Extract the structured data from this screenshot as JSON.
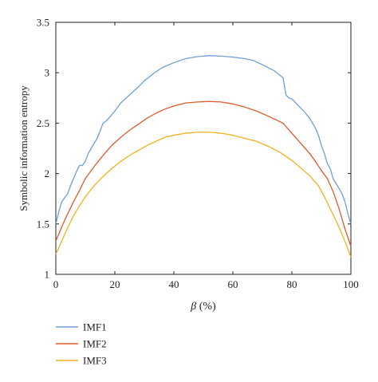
{
  "chart_data": {
    "type": "line",
    "title": "",
    "xlabel_symbol": "β",
    "xlabel_unit": " (%)",
    "ylabel": "Symbolic information entropy",
    "xlim": [
      0,
      100
    ],
    "ylim": [
      1,
      3.5
    ],
    "x_ticks": [
      0,
      20,
      40,
      60,
      80,
      100
    ],
    "y_ticks": [
      1,
      1.5,
      2,
      2.5,
      3,
      3.5
    ],
    "grid": false,
    "legend_position": "below plot, left",
    "series": [
      {
        "name": "IMF1",
        "color": "#6f9fd8",
        "points": [
          [
            0,
            1.5
          ],
          [
            1,
            1.62
          ],
          [
            2,
            1.72
          ],
          [
            3,
            1.76
          ],
          [
            4,
            1.8
          ],
          [
            5,
            1.88
          ],
          [
            6,
            1.95
          ],
          [
            7,
            2.02
          ],
          [
            8,
            2.08
          ],
          [
            9,
            2.08
          ],
          [
            10,
            2.12
          ],
          [
            11,
            2.2
          ],
          [
            12,
            2.25
          ],
          [
            13,
            2.3
          ],
          [
            14,
            2.35
          ],
          [
            15,
            2.42
          ],
          [
            16,
            2.5
          ],
          [
            17,
            2.52
          ],
          [
            18,
            2.55
          ],
          [
            20,
            2.62
          ],
          [
            22,
            2.7
          ],
          [
            25,
            2.78
          ],
          [
            28,
            2.86
          ],
          [
            30,
            2.92
          ],
          [
            33,
            2.99
          ],
          [
            36,
            3.05
          ],
          [
            40,
            3.1
          ],
          [
            44,
            3.14
          ],
          [
            48,
            3.16
          ],
          [
            52,
            3.17
          ],
          [
            56,
            3.165
          ],
          [
            60,
            3.155
          ],
          [
            64,
            3.14
          ],
          [
            67,
            3.12
          ],
          [
            70,
            3.08
          ],
          [
            74,
            3.02
          ],
          [
            77,
            2.95
          ],
          [
            78,
            2.78
          ],
          [
            79,
            2.75
          ],
          [
            80,
            2.74
          ],
          [
            82,
            2.68
          ],
          [
            84,
            2.62
          ],
          [
            86,
            2.55
          ],
          [
            88,
            2.45
          ],
          [
            89,
            2.38
          ],
          [
            90,
            2.28
          ],
          [
            91,
            2.2
          ],
          [
            92,
            2.1
          ],
          [
            93,
            2.05
          ],
          [
            94,
            1.95
          ],
          [
            95,
            1.9
          ],
          [
            96,
            1.85
          ],
          [
            97,
            1.8
          ],
          [
            98,
            1.72
          ],
          [
            99,
            1.6
          ],
          [
            100,
            1.5
          ]
        ]
      },
      {
        "name": "IMF2",
        "color": "#e05a2b",
        "points": [
          [
            0,
            1.33
          ],
          [
            2,
            1.47
          ],
          [
            4,
            1.6
          ],
          [
            6,
            1.72
          ],
          [
            8,
            1.83
          ],
          [
            10,
            1.95
          ],
          [
            13,
            2.07
          ],
          [
            16,
            2.18
          ],
          [
            19,
            2.28
          ],
          [
            22,
            2.36
          ],
          [
            25,
            2.43
          ],
          [
            28,
            2.49
          ],
          [
            31,
            2.55
          ],
          [
            34,
            2.6
          ],
          [
            37,
            2.64
          ],
          [
            40,
            2.67
          ],
          [
            44,
            2.7
          ],
          [
            48,
            2.71
          ],
          [
            52,
            2.715
          ],
          [
            56,
            2.71
          ],
          [
            60,
            2.69
          ],
          [
            64,
            2.66
          ],
          [
            68,
            2.62
          ],
          [
            72,
            2.57
          ],
          [
            77,
            2.5
          ],
          [
            80,
            2.4
          ],
          [
            83,
            2.3
          ],
          [
            86,
            2.2
          ],
          [
            88,
            2.12
          ],
          [
            90,
            2.03
          ],
          [
            92,
            1.95
          ],
          [
            94,
            1.82
          ],
          [
            96,
            1.65
          ],
          [
            98,
            1.45
          ],
          [
            100,
            1.28
          ]
        ]
      },
      {
        "name": "IMF3",
        "color": "#f0b21e",
        "points": [
          [
            0,
            1.2
          ],
          [
            2,
            1.33
          ],
          [
            4,
            1.46
          ],
          [
            6,
            1.58
          ],
          [
            8,
            1.68
          ],
          [
            10,
            1.77
          ],
          [
            13,
            1.88
          ],
          [
            16,
            1.97
          ],
          [
            19,
            2.05
          ],
          [
            22,
            2.12
          ],
          [
            25,
            2.18
          ],
          [
            28,
            2.23
          ],
          [
            31,
            2.28
          ],
          [
            34,
            2.32
          ],
          [
            37,
            2.36
          ],
          [
            40,
            2.38
          ],
          [
            44,
            2.4
          ],
          [
            48,
            2.41
          ],
          [
            52,
            2.41
          ],
          [
            56,
            2.4
          ],
          [
            60,
            2.38
          ],
          [
            64,
            2.35
          ],
          [
            68,
            2.32
          ],
          [
            72,
            2.27
          ],
          [
            76,
            2.21
          ],
          [
            80,
            2.13
          ],
          [
            84,
            2.03
          ],
          [
            86,
            1.98
          ],
          [
            89,
            1.88
          ],
          [
            91,
            1.77
          ],
          [
            93,
            1.65
          ],
          [
            95,
            1.53
          ],
          [
            97,
            1.4
          ],
          [
            99,
            1.25
          ],
          [
            100,
            1.17
          ]
        ]
      }
    ]
  }
}
